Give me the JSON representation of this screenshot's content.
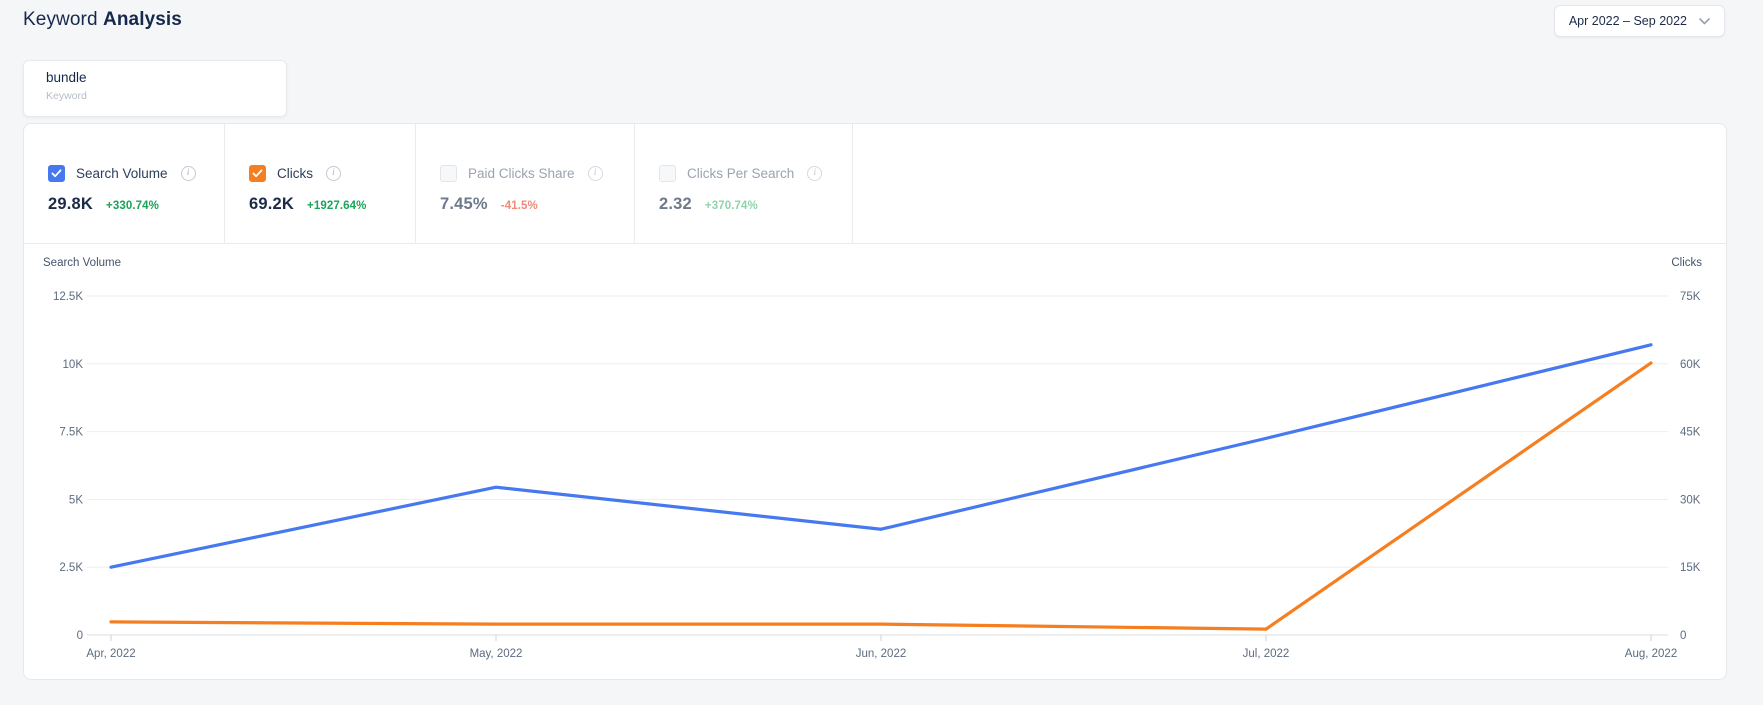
{
  "header": {
    "title_regular": "Keyword",
    "title_bold": "Analysis"
  },
  "date_range": {
    "label": "Apr 2022 – Sep 2022"
  },
  "keyword_input": {
    "value": "bundle",
    "label": "Keyword"
  },
  "metrics": [
    {
      "label": "Search Volume",
      "value": "29.8K",
      "delta": "+330.74%",
      "checked": true,
      "color": "#4679ef",
      "delta_tone": "positive"
    },
    {
      "label": "Clicks",
      "value": "69.2K",
      "delta": "+1927.64%",
      "checked": true,
      "color": "#f57e20",
      "delta_tone": "positive"
    },
    {
      "label": "Paid Clicks Share",
      "value": "7.45%",
      "delta": "-41.5%",
      "checked": false,
      "color": "",
      "delta_tone": "negative-muted"
    },
    {
      "label": "Clicks Per Search",
      "value": "2.32",
      "delta": "+370.74%",
      "checked": false,
      "color": "",
      "delta_tone": "positive-muted"
    }
  ],
  "chart_data": {
    "type": "line",
    "x": [
      "Apr, 2022",
      "May, 2022",
      "Jun, 2022",
      "Jul, 2022",
      "Aug, 2022"
    ],
    "series": [
      {
        "name": "Search Volume",
        "axis": "left",
        "color": "#4679ef",
        "values": [
          2500,
          5450,
          3900,
          7250,
          10700
        ]
      },
      {
        "name": "Clicks",
        "axis": "right",
        "color": "#f57e20",
        "values": [
          2900,
          2400,
          2400,
          1300,
          60200
        ]
      }
    ],
    "left_axis": {
      "title": "Search Volume",
      "ticks": [
        "0",
        "2.5K",
        "5K",
        "7.5K",
        "10K",
        "12.5K"
      ],
      "range": [
        0,
        12500
      ]
    },
    "right_axis": {
      "title": "Clicks",
      "ticks": [
        "0",
        "15K",
        "30K",
        "45K",
        "60K",
        "75K"
      ],
      "range": [
        0,
        75000
      ]
    },
    "grid": true,
    "legend_position": "none"
  },
  "colors": {
    "accent_blue": "#4679ef",
    "accent_orange": "#f57e20",
    "positive_green": "#1aa35a",
    "positive_green_muted": "#8fd4ab",
    "negative_red_muted": "#ee8a77",
    "grid_line": "#eeeef1",
    "axis_line": "#d8dce2"
  }
}
